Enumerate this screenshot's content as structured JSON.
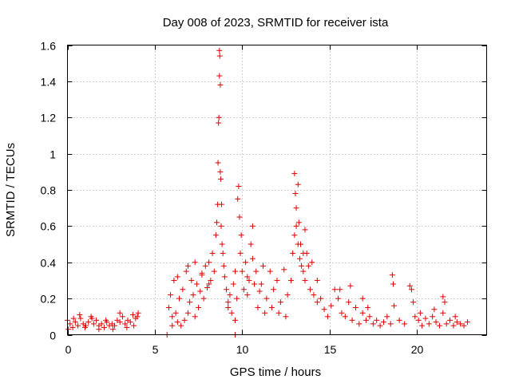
{
  "chart_data": {
    "type": "scatter",
    "title": "Day 008 of 2023, SRMTID for receiver ista",
    "xlabel": "GPS time / hours",
    "ylabel": "SRMTID / TECUs",
    "xlim": [
      0,
      24
    ],
    "ylim": [
      0,
      1.6
    ],
    "grid": true,
    "marker": "+",
    "color": "#e00000",
    "xticks": [
      {
        "value": 0,
        "label": "0"
      },
      {
        "value": 5,
        "label": "5"
      },
      {
        "value": 10,
        "label": "10"
      },
      {
        "value": 15,
        "label": "15"
      },
      {
        "value": 20,
        "label": "20"
      }
    ],
    "yticks": [
      {
        "value": 0,
        "label": "0"
      },
      {
        "value": 0.2,
        "label": "0.2"
      },
      {
        "value": 0.4,
        "label": "0.4"
      },
      {
        "value": 0.6,
        "label": "0.6"
      },
      {
        "value": 0.8,
        "label": "0.8"
      },
      {
        "value": 1.0,
        "label": "1"
      },
      {
        "value": 1.2,
        "label": "1.2"
      },
      {
        "value": 1.4,
        "label": "1.4"
      },
      {
        "value": 1.6,
        "label": "1.6"
      }
    ],
    "series": [
      {
        "name": "SRMTID",
        "x": [
          0.0,
          0.15,
          0.3,
          0.45,
          0.6,
          0.75,
          0.9,
          1.05,
          1.2,
          1.35,
          1.5,
          1.65,
          1.8,
          1.95,
          2.1,
          2.25,
          2.4,
          2.55,
          2.7,
          2.85,
          3.0,
          3.15,
          3.3,
          3.45,
          3.6,
          3.75,
          3.9,
          4.05,
          0.05,
          0.35,
          0.7,
          1.0,
          1.4,
          1.8,
          2.2,
          2.6,
          3.0,
          3.4,
          3.8,
          4.0,
          5.7,
          9.6,
          5.8,
          5.9,
          6.0,
          6.1,
          6.2,
          6.3,
          6.4,
          6.5,
          6.6,
          6.7,
          6.8,
          6.9,
          7.0,
          7.1,
          7.2,
          7.3,
          7.4,
          7.5,
          7.6,
          7.7,
          7.8,
          7.9,
          8.0,
          8.1,
          8.2,
          8.3,
          8.4,
          6.0,
          6.3,
          6.9,
          7.3,
          7.7,
          8.1,
          8.5,
          8.55,
          8.6,
          8.62,
          8.65,
          8.67,
          8.7,
          8.7,
          8.72,
          8.75,
          8.75,
          8.78,
          8.8,
          8.82,
          8.85,
          8.9,
          8.95,
          9.0,
          9.1,
          9.2,
          9.3,
          9.4,
          9.5,
          9.6,
          9.7,
          9.75,
          9.8,
          9.85,
          9.9,
          9.95,
          10.0,
          10.1,
          10.2,
          10.3,
          10.4,
          10.5,
          10.6,
          10.7,
          10.8,
          10.9,
          11.0,
          9.2,
          9.6,
          10.3,
          10.6,
          11.1,
          11.2,
          11.4,
          11.6,
          11.8,
          12.0,
          12.2,
          12.4,
          12.6,
          12.8,
          12.9,
          13.0,
          13.1,
          13.2,
          13.3,
          13.4,
          13.5,
          13.6,
          13.7,
          13.8,
          13.9,
          14.0,
          11.3,
          11.7,
          12.1,
          12.5,
          13.0,
          13.05,
          13.1,
          13.2,
          13.25,
          13.35,
          13.5,
          13.6,
          14.1,
          14.3,
          14.5,
          14.7,
          14.9,
          15.1,
          15.3,
          15.5,
          15.7,
          15.9,
          16.1,
          16.3,
          16.5,
          16.7,
          16.9,
          17.1,
          17.3,
          17.5,
          17.7,
          17.9,
          18.1,
          18.3,
          18.5,
          14.3,
          15.6,
          16.2,
          16.9,
          17.2,
          18.6,
          18.65,
          18.7,
          19.0,
          19.3,
          19.6,
          19.7,
          19.8,
          19.9,
          20.1,
          20.3,
          20.5,
          20.7,
          20.9,
          21.1,
          21.3,
          21.5,
          21.7,
          21.9,
          22.1,
          22.3,
          22.5,
          22.7,
          22.9,
          20.2,
          21.0,
          21.5,
          21.6,
          22.2
        ],
        "y": [
          0.08,
          0.06,
          0.04,
          0.07,
          0.05,
          0.09,
          0.06,
          0.05,
          0.07,
          0.1,
          0.06,
          0.08,
          0.05,
          0.06,
          0.04,
          0.07,
          0.05,
          0.06,
          0.05,
          0.08,
          0.07,
          0.1,
          0.06,
          0.08,
          0.07,
          0.11,
          0.09,
          0.12,
          0.03,
          0.09,
          0.11,
          0.04,
          0.09,
          0.03,
          0.08,
          0.03,
          0.12,
          0.04,
          0.05,
          0.1,
          0.0,
          0.0,
          0.15,
          0.22,
          0.1,
          0.3,
          0.12,
          0.07,
          0.2,
          0.05,
          0.25,
          0.08,
          0.35,
          0.12,
          0.18,
          0.3,
          0.22,
          0.1,
          0.28,
          0.15,
          0.24,
          0.33,
          0.2,
          0.38,
          0.26,
          0.4,
          0.3,
          0.45,
          0.35,
          0.05,
          0.32,
          0.38,
          0.4,
          0.34,
          0.28,
          0.55,
          0.62,
          0.72,
          0.95,
          1.17,
          1.2,
          1.43,
          1.57,
          1.54,
          1.38,
          0.9,
          0.86,
          0.6,
          0.72,
          0.5,
          0.45,
          0.38,
          0.32,
          0.25,
          0.18,
          0.22,
          0.12,
          0.28,
          0.35,
          0.2,
          0.75,
          0.82,
          0.65,
          0.45,
          0.55,
          0.35,
          0.25,
          0.4,
          0.22,
          0.3,
          0.5,
          0.6,
          0.28,
          0.35,
          0.15,
          0.24,
          0.15,
          0.08,
          0.32,
          0.42,
          0.28,
          0.38,
          0.2,
          0.35,
          0.25,
          0.3,
          0.18,
          0.36,
          0.22,
          0.3,
          0.45,
          0.55,
          0.6,
          0.5,
          0.42,
          0.38,
          0.35,
          0.3,
          0.45,
          0.38,
          0.25,
          0.4,
          0.12,
          0.15,
          0.12,
          0.1,
          0.89,
          0.78,
          0.7,
          0.83,
          0.62,
          0.5,
          0.45,
          0.58,
          0.22,
          0.18,
          0.2,
          0.14,
          0.1,
          0.16,
          0.25,
          0.2,
          0.12,
          0.1,
          0.18,
          0.08,
          0.15,
          0.06,
          0.12,
          0.08,
          0.1,
          0.06,
          0.08,
          0.05,
          0.07,
          0.1,
          0.06,
          0.3,
          0.25,
          0.27,
          0.2,
          0.15,
          0.33,
          0.28,
          0.16,
          0.08,
          0.06,
          0.27,
          0.25,
          0.18,
          0.1,
          0.08,
          0.05,
          0.09,
          0.06,
          0.1,
          0.07,
          0.05,
          0.12,
          0.06,
          0.08,
          0.05,
          0.07,
          0.06,
          0.05,
          0.07,
          0.12,
          0.14,
          0.21,
          0.18,
          0.1
        ]
      }
    ]
  }
}
